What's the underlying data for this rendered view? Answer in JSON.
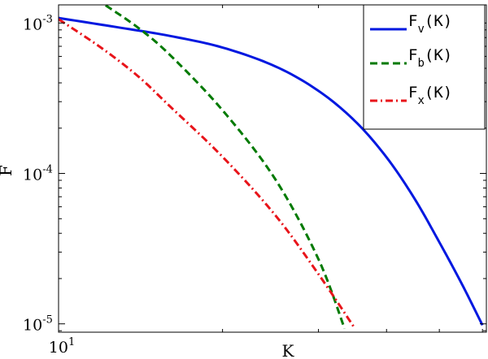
{
  "chart_data": {
    "type": "line",
    "title": "",
    "xlabel": "K",
    "ylabel": "F",
    "xscale": "log",
    "yscale": "log",
    "xlim": [
      10,
      61
    ],
    "ylim": [
      8.8e-06,
      0.00132
    ],
    "grid": false,
    "legend_position": "top-right",
    "x_ticks": [
      {
        "base": "10",
        "exp": "1",
        "value": 10
      }
    ],
    "y_ticks": [
      {
        "base": "10",
        "exp": "-3",
        "value": 0.001
      },
      {
        "base": "10",
        "exp": "-4",
        "value": 0.0001
      },
      {
        "base": "10",
        "exp": "-5",
        "value": 1e-05
      }
    ],
    "series": [
      {
        "legend_main": "F",
        "legend_sub": "v",
        "legend_arg": "(K)",
        "color": "#0018e0",
        "dash": "solid",
        "x": [
          10,
          13,
          16,
          20,
          25,
          30,
          35,
          40,
          45,
          50,
          55,
          60
        ],
        "y": [
          0.00108,
          0.00093,
          0.000821,
          0.000687,
          0.000515,
          0.000354,
          0.000223,
          0.000128,
          6.82e-05,
          3.49e-05,
          1.84e-05,
          9.8e-06
        ]
      },
      {
        "legend_main": "F",
        "legend_sub": "b",
        "legend_arg": "(K)",
        "color": "#007a00",
        "dash": "dashed",
        "x": [
          12.2,
          14,
          16,
          20,
          25,
          30,
          33.5
        ],
        "y": [
          0.00131,
          0.00093,
          0.000615,
          0.000263,
          9.14e-05,
          2.69e-05,
          9.3e-06
        ]
      },
      {
        "legend_main": "F",
        "legend_sub": "x",
        "legend_arg": "(K)",
        "color": "#e8141a",
        "dash": "dashdot",
        "x": [
          10,
          12,
          14,
          16,
          20,
          25,
          30,
          35
        ],
        "y": [
          0.00106,
          0.000681,
          0.000442,
          0.00028,
          0.000129,
          5.27e-05,
          2.14e-05,
          9.3e-06
        ]
      }
    ]
  }
}
